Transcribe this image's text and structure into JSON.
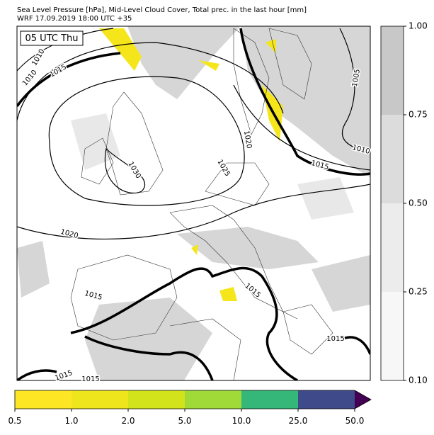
{
  "header": {
    "title": "Sea Level Pressure [hPa], Mid-Level Cloud Cover, Total prec. in the last hour [mm]",
    "subtitle": "WRF 17.09.2019 18:00 UTC +35"
  },
  "map": {
    "time_label": "05 UTC Thu",
    "isobar_labels": [
      "1005",
      "1010",
      "1015",
      "1010",
      "1015",
      "1030",
      "1020",
      "1025",
      "1020",
      "1015",
      "1010",
      "1015",
      "1015",
      "1015",
      "1015"
    ]
  },
  "cloud_colorbar": {
    "ticks": [
      "1.00",
      "0.75",
      "0.50",
      "0.25",
      "0.10"
    ]
  },
  "precip_colorbar": {
    "ticks": [
      "0.5",
      "1.0",
      "2.0",
      "5.0",
      "10.0",
      "25.0",
      "50.0"
    ]
  }
}
